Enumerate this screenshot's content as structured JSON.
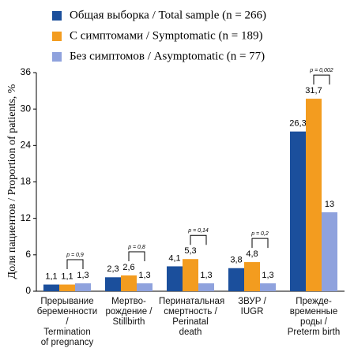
{
  "chart_data": {
    "type": "bar",
    "y_label": "Доля пациентов / Proportion of patients, %",
    "categories": [
      "Прерывание\nбеременности /\nTermination\nof pregnancy",
      "Мертво-\nрождение /\nStillbirth",
      "Перинатальная\nсмертность /\nPerinatal\ndeath",
      "ЗВУР /\nIUGR",
      "Прежде-\nвременные\nроды /\nPreterm birth"
    ],
    "series": [
      {
        "name": "Общая выборка / Total sample (n = 266)",
        "color": "#1b4f9c",
        "values": [
          1.1,
          2.3,
          4.1,
          3.8,
          26.3
        ],
        "value_labels": [
          "1,1",
          "2,3",
          "4,1",
          "3,8",
          "26,3"
        ]
      },
      {
        "name": "С симптомами / Symptomatic (n = 189)",
        "color": "#f39c1f",
        "values": [
          1.1,
          2.6,
          5.3,
          4.8,
          31.7
        ],
        "value_labels": [
          "1,1",
          "2,6",
          "5,3",
          "4,8",
          "31,7"
        ]
      },
      {
        "name": "Без симптомов / Asymptomatic (n = 77)",
        "color": "#8fa2dd",
        "values": [
          1.3,
          1.3,
          1.3,
          1.3,
          13
        ],
        "value_labels": [
          "1,3",
          "1,3",
          "1,3",
          "1,3",
          "13"
        ]
      }
    ],
    "p_values": [
      "p = 0,9",
      "p = 0,8",
      "p = 0,14",
      "p = 0,2",
      "p = 0,002"
    ],
    "ylim": [
      0,
      36
    ],
    "yticks": [
      0,
      6,
      12,
      18,
      24,
      30,
      36
    ],
    "grid": false
  }
}
